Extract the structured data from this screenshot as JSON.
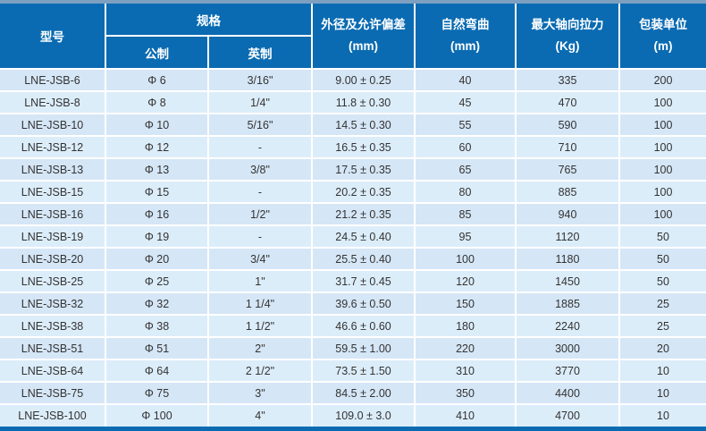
{
  "table": {
    "title_hint": "LNE-JSB cable specification table",
    "headers": {
      "model": "型号",
      "spec_group": "规格",
      "metric": "公制",
      "imperial": "英制",
      "od_line1": "外径及允许偏差",
      "od_line2": "(mm)",
      "bend_line1": "自然弯曲",
      "bend_line2": "(mm)",
      "tension_line1": "最大轴向拉力",
      "tension_line2": "(Kg)",
      "packing_line1": "包装单位",
      "packing_line2": "(m)"
    },
    "rows": [
      {
        "model": "LNE-JSB-6",
        "metric": "Φ 6",
        "imperial": "3/16\"",
        "od": "9.00 ± 0.25",
        "bend": "40",
        "tension": "335",
        "packing": "200"
      },
      {
        "model": "LNE-JSB-8",
        "metric": "Φ 8",
        "imperial": "1/4\"",
        "od": "11.8 ± 0.30",
        "bend": "45",
        "tension": "470",
        "packing": "100"
      },
      {
        "model": "LNE-JSB-10",
        "metric": "Φ 10",
        "imperial": "5/16\"",
        "od": "14.5 ± 0.30",
        "bend": "55",
        "tension": "590",
        "packing": "100"
      },
      {
        "model": "LNE-JSB-12",
        "metric": "Φ 12",
        "imperial": "-",
        "od": "16.5 ± 0.35",
        "bend": "60",
        "tension": "710",
        "packing": "100"
      },
      {
        "model": "LNE-JSB-13",
        "metric": "Φ 13",
        "imperial": "3/8\"",
        "od": "17.5 ± 0.35",
        "bend": "65",
        "tension": "765",
        "packing": "100"
      },
      {
        "model": "LNE-JSB-15",
        "metric": "Φ 15",
        "imperial": "-",
        "od": "20.2 ± 0.35",
        "bend": "80",
        "tension": "885",
        "packing": "100"
      },
      {
        "model": "LNE-JSB-16",
        "metric": "Φ 16",
        "imperial": "1/2\"",
        "od": "21.2 ± 0.35",
        "bend": "85",
        "tension": "940",
        "packing": "100"
      },
      {
        "model": "LNE-JSB-19",
        "metric": "Φ 19",
        "imperial": "-",
        "od": "24.5 ± 0.40",
        "bend": "95",
        "tension": "1120",
        "packing": "50"
      },
      {
        "model": "LNE-JSB-20",
        "metric": "Φ 20",
        "imperial": "3/4\"",
        "od": "25.5 ± 0.40",
        "bend": "100",
        "tension": "1180",
        "packing": "50"
      },
      {
        "model": "LNE-JSB-25",
        "metric": "Φ 25",
        "imperial": "1\"",
        "od": "31.7 ± 0.45",
        "bend": "120",
        "tension": "1450",
        "packing": "50"
      },
      {
        "model": "LNE-JSB-32",
        "metric": "Φ 32",
        "imperial": "1 1/4\"",
        "od": "39.6 ± 0.50",
        "bend": "150",
        "tension": "1885",
        "packing": "25"
      },
      {
        "model": "LNE-JSB-38",
        "metric": "Φ 38",
        "imperial": "1 1/2\"",
        "od": "46.6 ± 0.60",
        "bend": "180",
        "tension": "2240",
        "packing": "25"
      },
      {
        "model": "LNE-JSB-51",
        "metric": "Φ 51",
        "imperial": "2\"",
        "od": "59.5 ± 1.00",
        "bend": "220",
        "tension": "3000",
        "packing": "20"
      },
      {
        "model": "LNE-JSB-64",
        "metric": "Φ 64",
        "imperial": "2 1/2\"",
        "od": "73.5 ± 1.50",
        "bend": "310",
        "tension": "3770",
        "packing": "10"
      },
      {
        "model": "LNE-JSB-75",
        "metric": "Φ 75",
        "imperial": "3\"",
        "od": "84.5 ± 2.00",
        "bend": "350",
        "tension": "4400",
        "packing": "10"
      },
      {
        "model": "LNE-JSB-100",
        "metric": "Φ 100",
        "imperial": "4\"",
        "od": "109.0 ± 3.0",
        "bend": "410",
        "tension": "4700",
        "packing": "10"
      }
    ]
  },
  "colors": {
    "header_bg": "#0a6bb2",
    "header_text": "#ffffff",
    "row_bg_odd": "#d5e6f6",
    "row_bg_even": "#dcedfa",
    "cell_text": "#333333",
    "top_strip": "#7d9fc0",
    "bottom_strip": "#0a6bb2"
  }
}
